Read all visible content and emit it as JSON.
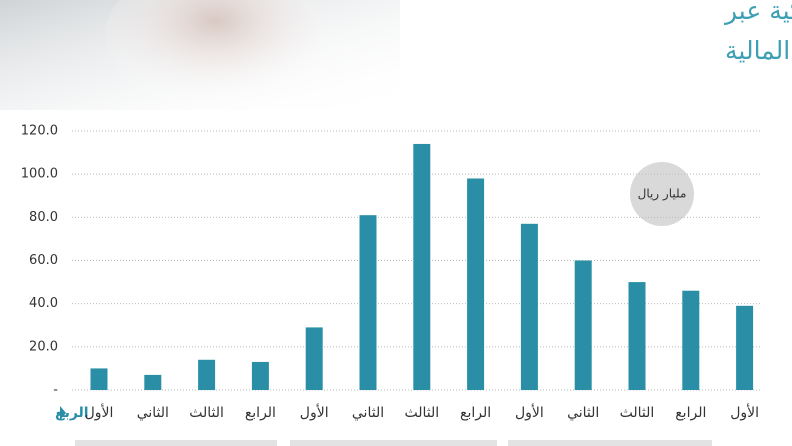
{
  "chart_data": {
    "type": "bar",
    "title": "في الأسهم الأمريكية عبر",
    "subtitle": "مؤسسات السوق المالية",
    "unit": "مليار ريال",
    "x_label": "الربع",
    "categories": [
      "الأول",
      "الثاني",
      "الثالث",
      "الرابع",
      "الأول",
      "الثاني",
      "الثالث",
      "الرابع",
      "الأول",
      "الثاني",
      "الثالث",
      "الرابع",
      "الأول"
    ],
    "values": [
      10,
      7,
      14,
      13,
      29,
      81,
      114,
      98,
      77,
      60,
      50,
      46,
      39
    ],
    "color": "#2a8fa6",
    "ylim": [
      0,
      120
    ],
    "yticks": [
      {
        "value": 0,
        "label": "-"
      },
      {
        "value": 20,
        "label": "20.0"
      },
      {
        "value": 40,
        "label": "40.0"
      },
      {
        "value": 60,
        "label": "60.0"
      },
      {
        "value": 80,
        "label": "80.0"
      },
      {
        "value": 100,
        "label": "100.0"
      },
      {
        "value": 120,
        "label": "120.0"
      }
    ],
    "grid": true
  }
}
